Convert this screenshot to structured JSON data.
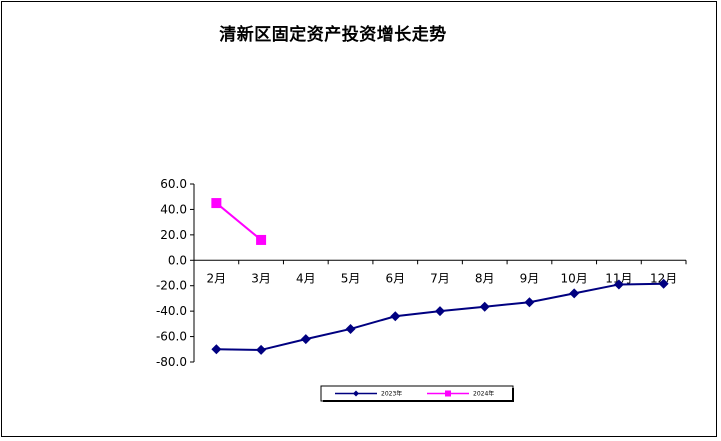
{
  "chart_data": {
    "type": "line",
    "title": "清新区固定资产投资增长走势",
    "xlabel": "",
    "ylabel": "",
    "categories": [
      "2月",
      "3月",
      "4月",
      "5月",
      "6月",
      "7月",
      "8月",
      "9月",
      "10月",
      "11月",
      "12月"
    ],
    "ylim": [
      -80,
      60
    ],
    "yticks": [
      "60.0",
      "40.0",
      "20.0",
      "0.0",
      "-20.0",
      "-40.0",
      "-60.0",
      "-80.0"
    ],
    "grid": false,
    "legend_position": "bottom",
    "series": [
      {
        "name": "2023年",
        "color": "#000080",
        "marker": "diamond",
        "values": [
          -70.0,
          -70.5,
          -62.0,
          -54.0,
          -44.0,
          -40.0,
          -36.5,
          -33.0,
          -26.0,
          -19.0,
          -18.5
        ]
      },
      {
        "name": "2024年",
        "color": "#ff00ff",
        "marker": "square",
        "values": [
          45.0,
          16.0,
          null,
          null,
          null,
          null,
          null,
          null,
          null,
          null,
          null
        ]
      }
    ]
  }
}
